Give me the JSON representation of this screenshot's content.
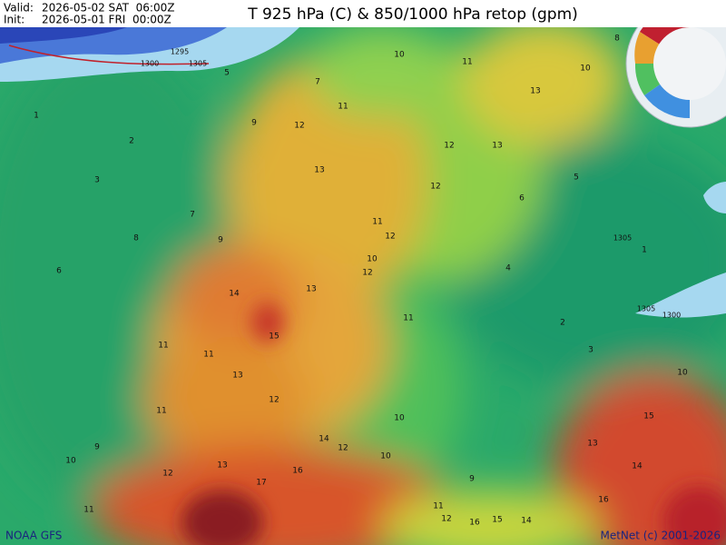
{
  "header": {
    "valid_label": "Valid:",
    "valid": "2026-05-02 SAT  06:00Z",
    "init_label": "Init:",
    "init": "2026-05-01 FRI  00:00Z",
    "title": "T 925 hPa (C) & 850/1000 hPa retop (gpm)"
  },
  "footer": {
    "source": "NOAA GFS",
    "credit": "MetNet (c) 2001-2026"
  },
  "map": {
    "temperature_labels": [
      1,
      2,
      3,
      7,
      8,
      6,
      9,
      12,
      13,
      11,
      12,
      10,
      14,
      15,
      13,
      11,
      13,
      12,
      11,
      9,
      10,
      12,
      11,
      13,
      17,
      16,
      14,
      12,
      10,
      9,
      11,
      12,
      16,
      15,
      14,
      16,
      15,
      14,
      13,
      10,
      3,
      2,
      1,
      4,
      6,
      5,
      8,
      10,
      13,
      11,
      10,
      7,
      5,
      9,
      11,
      12,
      13,
      12,
      11,
      12,
      11,
      10
    ],
    "height_labels": [
      1300,
      1295,
      1305,
      1305,
      1300,
      1305
    ]
  }
}
